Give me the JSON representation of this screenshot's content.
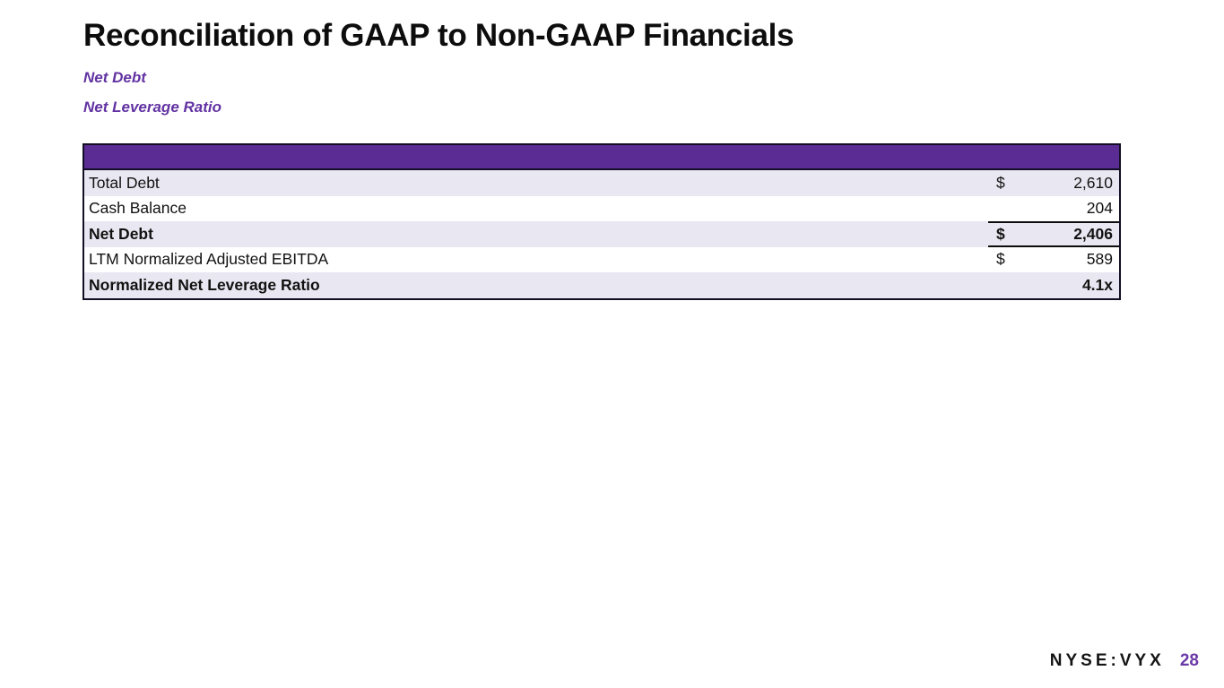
{
  "slide": {
    "title": "Reconciliation of GAAP to Non-GAAP Financials",
    "subtitles": [
      "Net Debt",
      "Net Leverage Ratio"
    ]
  },
  "table": {
    "header_label": "",
    "rows": [
      {
        "label": "Total Debt",
        "currency": "$",
        "value": "2,610"
      },
      {
        "label": "Cash Balance",
        "currency": "",
        "value": "204"
      },
      {
        "label": "Net Debt",
        "currency": "$",
        "value": "2,406"
      },
      {
        "label": "LTM Normalized Adjusted EBITDA",
        "currency": "$",
        "value": "589"
      },
      {
        "label": "Normalized Net Leverage Ratio",
        "currency": "",
        "value": "4.1x"
      }
    ]
  },
  "footer": {
    "ticker": "NYSE:VYX",
    "page_number": "28"
  },
  "colors": {
    "header_purple": "#5b2c94",
    "row_stripe_lavender": "#e9e8f2",
    "subtitle_purple": "#6233a2",
    "page_number_purple": "#6b3aa8",
    "table_border": "#130e24",
    "text": "#121212"
  }
}
